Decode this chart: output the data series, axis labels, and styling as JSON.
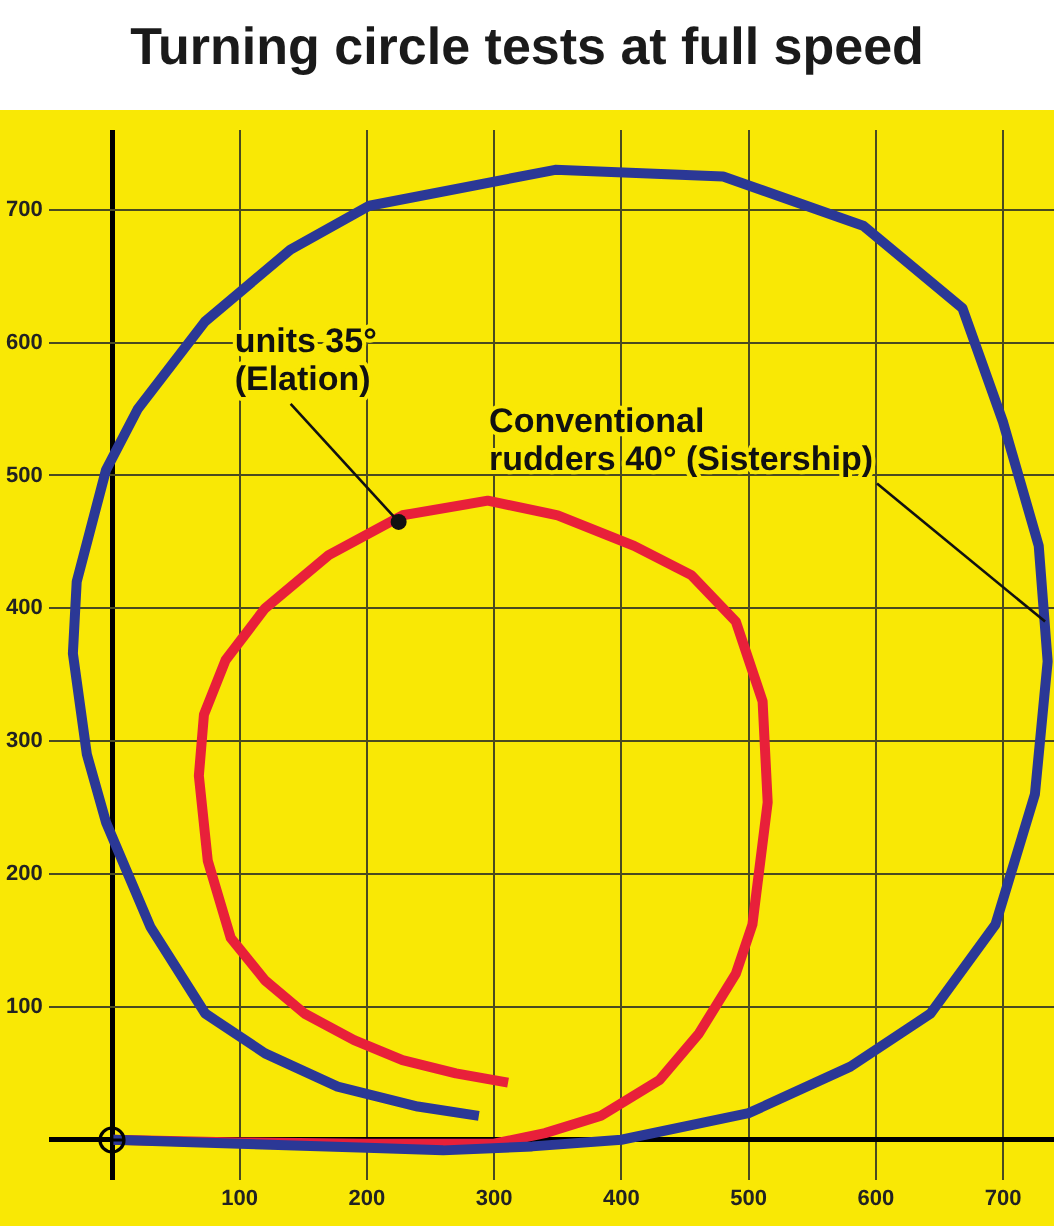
{
  "chart_data": {
    "type": "line",
    "title": "Turning circle tests at full speed",
    "xlim": [
      -50,
      740
    ],
    "ylim": [
      -30,
      760
    ],
    "xticks": [
      {
        "value": 0,
        "label": null
      },
      100,
      200,
      300,
      400,
      500,
      600,
      700
    ],
    "yticks": [
      {
        "value": 0,
        "label": null
      },
      100,
      200,
      300,
      400,
      500,
      600,
      700
    ],
    "grid": true,
    "legend": false,
    "marker": "none",
    "line_style": "solid",
    "series": [
      {
        "color": "#2b3896",
        "x": [
          0,
          100,
          200,
          260,
          330,
          400,
          500,
          580,
          643,
          694,
          725,
          735,
          728,
          700,
          668,
          590,
          480,
          348,
          202,
          140,
          73,
          20,
          -5,
          -28,
          -31,
          -20,
          -5,
          30,
          73,
          120,
          177,
          240,
          288
        ],
        "values": [
          0,
          -3,
          -6,
          -8,
          -5,
          0,
          20,
          55,
          95,
          162,
          260,
          360,
          447,
          540,
          626,
          688,
          725,
          730,
          703,
          670,
          616,
          550,
          504,
          420,
          366,
          290,
          239,
          160,
          95,
          65,
          40,
          25,
          18
        ]
      },
      {
        "color": "#e8203a",
        "x": [
          0,
          100,
          200,
          300,
          340,
          384,
          430,
          461,
          490,
          503,
          515,
          511,
          490,
          455,
          410,
          350,
          295,
          228,
          170,
          120,
          89,
          72,
          68,
          75,
          93,
          120,
          151,
          190,
          228,
          270,
          311
        ],
        "values": [
          0,
          -2,
          -3,
          -3,
          5,
          18,
          45,
          80,
          125,
          162,
          254,
          330,
          390,
          425,
          447,
          470,
          481,
          470,
          440,
          400,
          361,
          320,
          274,
          210,
          152,
          120,
          95,
          75,
          60,
          50,
          43
        ]
      }
    ],
    "annotations": [
      {
        "text": "units 35°\n(Elation)",
        "x": 225,
        "y": 465
      },
      {
        "text": "Conventional\nrudders 40° (Sistership)",
        "x": 733,
        "y": 390
      }
    ]
  }
}
